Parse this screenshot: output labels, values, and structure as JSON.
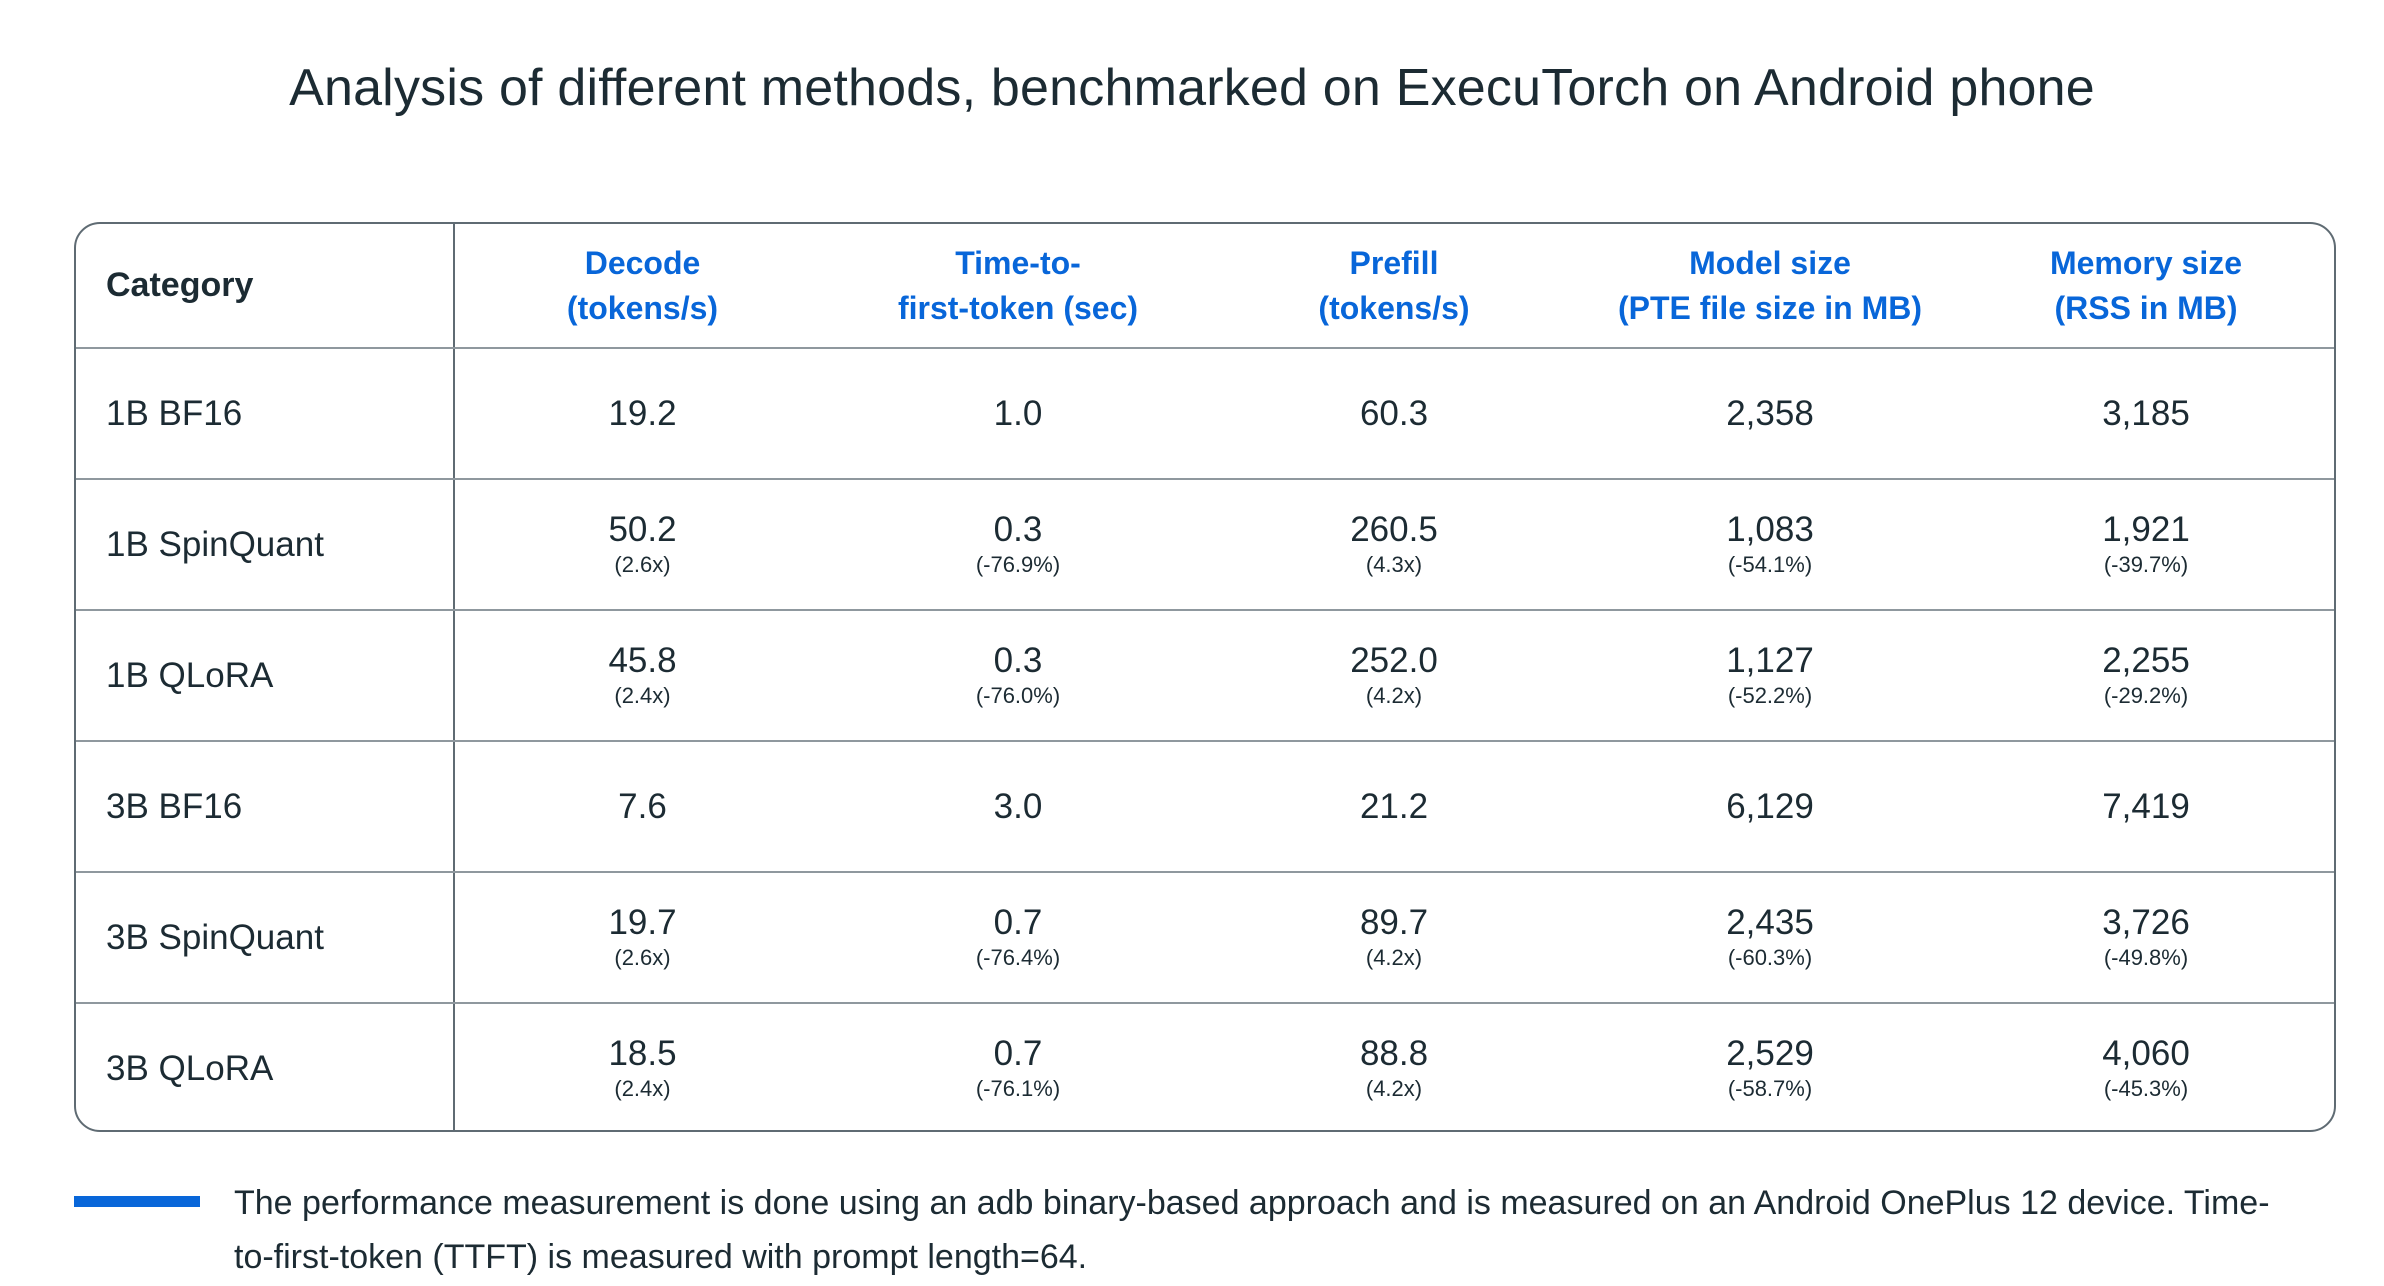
{
  "title": "Analysis of different methods, benchmarked on ExecuTorch on Android phone",
  "accent_color": "#0866d9",
  "text_color": "#1c2b33",
  "chart_data": {
    "type": "table",
    "title": "Analysis of different methods, benchmarked on ExecuTorch on Android phone",
    "columns": [
      {
        "line1": "Category",
        "line2": ""
      },
      {
        "line1": "Decode",
        "line2": "(tokens/s)"
      },
      {
        "line1": "Time-to-",
        "line2": "first-token (sec)"
      },
      {
        "line1": "Prefill",
        "line2": "(tokens/s)"
      },
      {
        "line1": "Model size",
        "line2": "(PTE file size in MB)"
      },
      {
        "line1": "Memory size",
        "line2": "(RSS in MB)"
      }
    ],
    "rows": [
      {
        "category": "1B BF16",
        "cells": [
          {
            "value": "19.2",
            "delta": ""
          },
          {
            "value": "1.0",
            "delta": ""
          },
          {
            "value": "60.3",
            "delta": ""
          },
          {
            "value": "2,358",
            "delta": ""
          },
          {
            "value": "3,185",
            "delta": ""
          }
        ]
      },
      {
        "category": "1B SpinQuant",
        "cells": [
          {
            "value": "50.2",
            "delta": "(2.6x)"
          },
          {
            "value": "0.3",
            "delta": "(-76.9%)"
          },
          {
            "value": "260.5",
            "delta": "(4.3x)"
          },
          {
            "value": "1,083",
            "delta": "(-54.1%)"
          },
          {
            "value": "1,921",
            "delta": "(-39.7%)"
          }
        ]
      },
      {
        "category": "1B QLoRA",
        "cells": [
          {
            "value": "45.8",
            "delta": "(2.4x)"
          },
          {
            "value": "0.3",
            "delta": "(-76.0%)"
          },
          {
            "value": "252.0",
            "delta": "(4.2x)"
          },
          {
            "value": "1,127",
            "delta": "(-52.2%)"
          },
          {
            "value": "2,255",
            "delta": "(-29.2%)"
          }
        ]
      },
      {
        "category": "3B BF16",
        "cells": [
          {
            "value": "7.6",
            "delta": ""
          },
          {
            "value": "3.0",
            "delta": ""
          },
          {
            "value": "21.2",
            "delta": ""
          },
          {
            "value": "6,129",
            "delta": ""
          },
          {
            "value": "7,419",
            "delta": ""
          }
        ]
      },
      {
        "category": "3B SpinQuant",
        "cells": [
          {
            "value": "19.7",
            "delta": "(2.6x)"
          },
          {
            "value": "0.7",
            "delta": "(-76.4%)"
          },
          {
            "value": "89.7",
            "delta": "(4.2x)"
          },
          {
            "value": "2,435",
            "delta": "(-60.3%)"
          },
          {
            "value": "3,726",
            "delta": "(-49.8%)"
          }
        ]
      },
      {
        "category": "3B QLoRA",
        "cells": [
          {
            "value": "18.5",
            "delta": "(2.4x)"
          },
          {
            "value": "0.7",
            "delta": "(-76.1%)"
          },
          {
            "value": "88.8",
            "delta": "(4.2x)"
          },
          {
            "value": "2,529",
            "delta": "(-58.7%)"
          },
          {
            "value": "4,060",
            "delta": "(-45.3%)"
          }
        ]
      }
    ]
  },
  "footnote": "The performance measurement is done using an adb binary-based approach and is measured on an Android OnePlus 12 device. Time-to-first-token (TTFT) is measured with prompt length=64."
}
